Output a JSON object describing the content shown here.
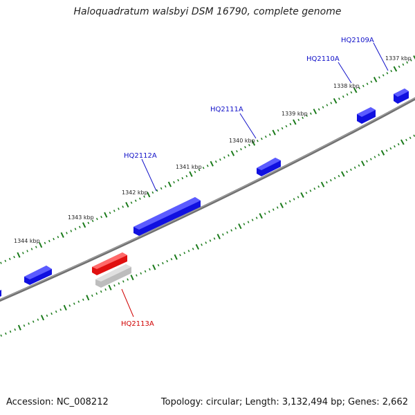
{
  "title": "Haloquadratum walsbyi DSM 16790, complete genome",
  "footer": {
    "accession": "Accession: NC_008212",
    "summary": "Topology: circular; Length: 3,132,494 bp; Genes: 2,662"
  },
  "colors": {
    "forward_gene": "#1010e0",
    "reverse_gene": "#e01010",
    "reverse_shadow": "#b8b8b8",
    "backbone": "#707070",
    "tick": "#1a7a1a",
    "forward_label": "#1010c8",
    "reverse_label": "#d00000"
  },
  "ruler": {
    "unit": "kbp",
    "ticks": [
      "1337 kbp",
      "1338 kbp",
      "1339 kbp",
      "1340 kbp",
      "1341 kbp",
      "1342 kbp",
      "1343 kbp",
      "1344 kbp"
    ]
  },
  "genes": [
    {
      "name": "HQ2109A",
      "strand": "forward"
    },
    {
      "name": "HQ2110A",
      "strand": "forward"
    },
    {
      "name": "HQ2111A",
      "strand": "forward"
    },
    {
      "name": "HQ2112A",
      "strand": "forward"
    },
    {
      "name": "HQ2113A",
      "strand": "reverse"
    }
  ]
}
